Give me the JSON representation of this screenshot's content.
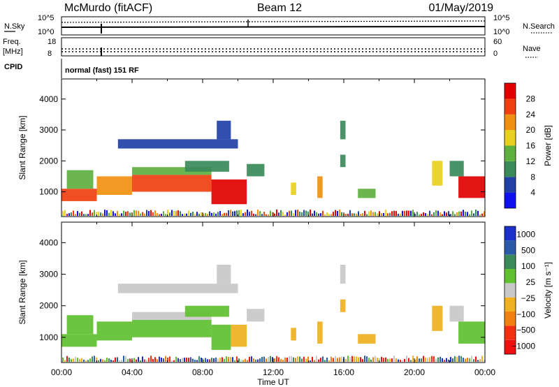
{
  "header": {
    "site": "McMurdo (fitACF)",
    "beam": "Beam 12",
    "date": "01/May/2019"
  },
  "noise_panel": {
    "left_label": "N.Sky",
    "right_label": "N.Search",
    "ticks_top": "10^5",
    "ticks_bottom": "10^0"
  },
  "freq_panel": {
    "left_label_1": "Freq.",
    "left_label_2": "[MHz]",
    "left_ticks": [
      "18",
      "8"
    ],
    "right_label": "Nave",
    "right_ticks": [
      "60",
      "0"
    ]
  },
  "cpid_panel": {
    "label": "CPID",
    "text": "normal (fast) 151 RF"
  },
  "x_axis": {
    "label": "Time UT",
    "ticks": [
      "00:00",
      "04:00",
      "08:00",
      "12:00",
      "16:00",
      "20:00",
      "00:00"
    ]
  },
  "colors": {
    "power_scale": [
      "#1010ee",
      "#2040a8",
      "#3a8a5a",
      "#60b040",
      "#e8d020",
      "#f09010",
      "#f04010",
      "#e00000"
    ],
    "velocity_scale": [
      "#ee1010",
      "#f03010",
      "#f08010",
      "#f0b020",
      "#c8c8c8",
      "#60c030",
      "#3a8a5a",
      "#2a5aa8",
      "#1a30c8"
    ]
  },
  "chart_data": [
    {
      "type": "heatmap",
      "ylabel": "Slant Range [km]",
      "xlabel": "",
      "y_ticks": [
        1000,
        2000,
        3000,
        4000
      ],
      "ylim": [
        200,
        4650
      ],
      "xlim": [
        0,
        24
      ],
      "colorbar": {
        "label": "Power [dB]",
        "ticks": [
          "4",
          "8",
          "12",
          "16",
          "20",
          "24",
          "28"
        ],
        "range": [
          0,
          32
        ]
      },
      "regions": [
        {
          "t0": 0.0,
          "t1": 2.0,
          "r0": 700,
          "r1": 1100,
          "value": 26
        },
        {
          "t0": 0.3,
          "t1": 1.8,
          "r0": 1100,
          "r1": 1700,
          "value": 12
        },
        {
          "t0": 2.0,
          "t1": 4.0,
          "r0": 900,
          "r1": 1500,
          "value": 20
        },
        {
          "t0": 4.0,
          "t1": 8.5,
          "r0": 1000,
          "r1": 1550,
          "value": 27
        },
        {
          "t0": 4.0,
          "t1": 8.5,
          "r0": 1550,
          "r1": 1800,
          "value": 12
        },
        {
          "t0": 8.5,
          "t1": 10.5,
          "r0": 600,
          "r1": 1400,
          "value": 29
        },
        {
          "t0": 7.0,
          "t1": 9.5,
          "r0": 1650,
          "r1": 2000,
          "value": 10
        },
        {
          "t0": 3.2,
          "t1": 10.0,
          "r0": 2400,
          "r1": 2700,
          "value": 6
        },
        {
          "t0": 8.8,
          "t1": 9.6,
          "r0": 2700,
          "r1": 3300,
          "value": 5
        },
        {
          "t0": 10.5,
          "t1": 11.5,
          "r0": 1500,
          "r1": 1900,
          "value": 10
        },
        {
          "t0": 13.0,
          "t1": 13.3,
          "r0": 900,
          "r1": 1300,
          "value": 18
        },
        {
          "t0": 14.5,
          "t1": 14.8,
          "r0": 800,
          "r1": 1500,
          "value": 20
        },
        {
          "t0": 15.8,
          "t1": 16.1,
          "r0": 2700,
          "r1": 3300,
          "value": 10
        },
        {
          "t0": 15.8,
          "t1": 16.1,
          "r0": 1800,
          "r1": 2200,
          "value": 8
        },
        {
          "t0": 16.8,
          "t1": 17.8,
          "r0": 800,
          "r1": 1100,
          "value": 14
        },
        {
          "t0": 21.0,
          "t1": 21.6,
          "r0": 1200,
          "r1": 2000,
          "value": 16
        },
        {
          "t0": 22.5,
          "t1": 24.0,
          "r0": 800,
          "r1": 1500,
          "value": 28
        },
        {
          "t0": 22.0,
          "t1": 22.8,
          "r0": 1500,
          "r1": 2000,
          "value": 10
        }
      ]
    },
    {
      "type": "heatmap",
      "ylabel": "Slant Range [km]",
      "xlabel": "Time UT",
      "y_ticks": [
        1000,
        2000,
        3000,
        4000
      ],
      "ylim": [
        200,
        4650
      ],
      "xlim": [
        0,
        24
      ],
      "colorbar": {
        "label": "Velocity [m s⁻¹]",
        "ticks": [
          "1000",
          "500",
          "100",
          "25",
          "−25",
          "−100",
          "−500",
          "−1000"
        ],
        "range": [
          -1200,
          1200
        ]
      },
      "regions": [
        {
          "t0": 0.0,
          "t1": 2.0,
          "r0": 700,
          "r1": 1100,
          "value": 150
        },
        {
          "t0": 0.3,
          "t1": 1.8,
          "r0": 1100,
          "r1": 1700,
          "value": 150
        },
        {
          "t0": 2.0,
          "t1": 4.0,
          "r0": 900,
          "r1": 1500,
          "value": 150
        },
        {
          "t0": 4.0,
          "t1": 8.5,
          "r0": 1000,
          "r1": 1550,
          "value": 150
        },
        {
          "t0": 4.0,
          "t1": 8.5,
          "r0": 1550,
          "r1": 1800,
          "value": 60
        },
        {
          "t0": 8.5,
          "t1": 9.6,
          "r0": 600,
          "r1": 1400,
          "value": 150
        },
        {
          "t0": 9.6,
          "t1": 10.5,
          "r0": 700,
          "r1": 1400,
          "value": -150
        },
        {
          "t0": 7.0,
          "t1": 9.5,
          "r0": 1650,
          "r1": 2000,
          "value": 150
        },
        {
          "t0": 3.2,
          "t1": 10.0,
          "r0": 2400,
          "r1": 2700,
          "value": 0
        },
        {
          "t0": 8.8,
          "t1": 9.6,
          "r0": 2700,
          "r1": 3300,
          "value": 60
        },
        {
          "t0": 10.5,
          "t1": 11.5,
          "r0": 1500,
          "r1": 1900,
          "value": 60
        },
        {
          "t0": 13.0,
          "t1": 13.3,
          "r0": 900,
          "r1": 1300,
          "value": -150
        },
        {
          "t0": 14.5,
          "t1": 14.8,
          "r0": 800,
          "r1": 1500,
          "value": -150
        },
        {
          "t0": 15.8,
          "t1": 16.1,
          "r0": 2700,
          "r1": 3300,
          "value": 60
        },
        {
          "t0": 15.8,
          "t1": 16.1,
          "r0": 1800,
          "r1": 2200,
          "value": -150
        },
        {
          "t0": 16.8,
          "t1": 17.8,
          "r0": 800,
          "r1": 1100,
          "value": -150
        },
        {
          "t0": 21.0,
          "t1": 21.6,
          "r0": 1200,
          "r1": 2000,
          "value": -150
        },
        {
          "t0": 22.5,
          "t1": 24.0,
          "r0": 800,
          "r1": 1500,
          "value": 150
        },
        {
          "t0": 22.0,
          "t1": 22.8,
          "r0": 1500,
          "r1": 2000,
          "value": 60
        }
      ]
    }
  ]
}
